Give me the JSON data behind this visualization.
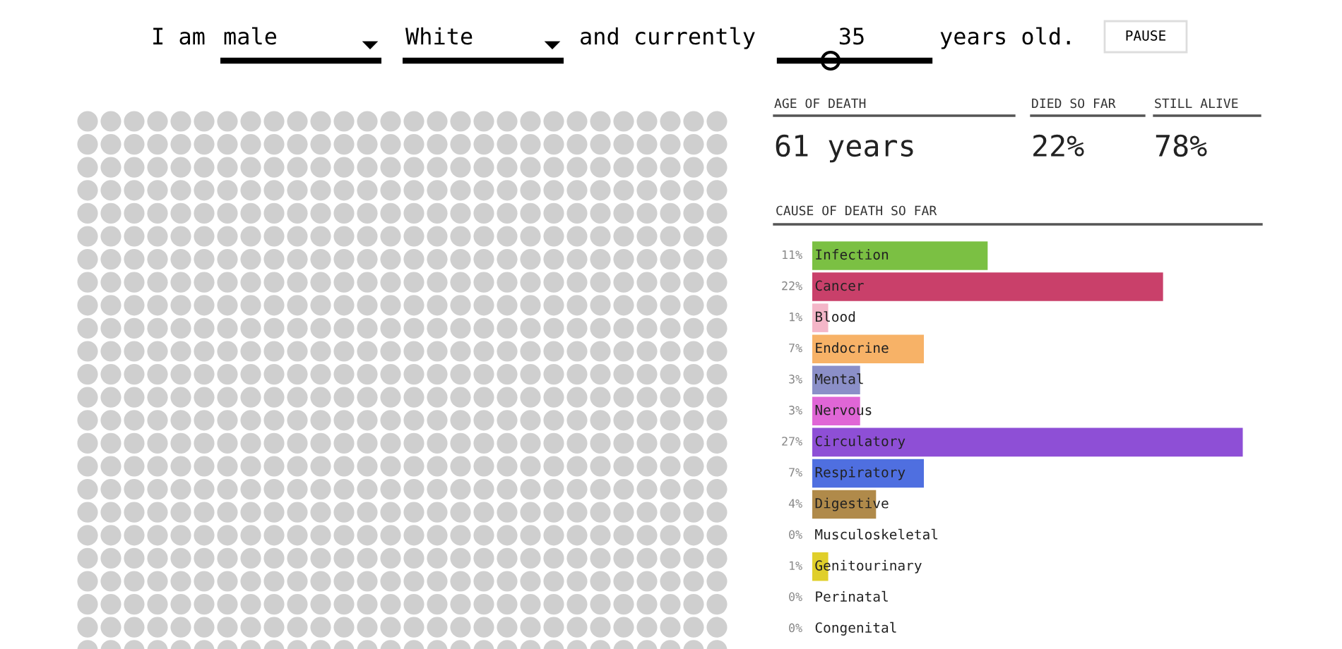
{
  "chart_data": [
    {
      "type": "other",
      "annotations": [
        "I am",
        "male",
        "White",
        "and currently",
        "35",
        "years old.",
        "PAUSE"
      ]
    },
    {
      "type": "other",
      "annotations": [
        "AGE OF DEATH",
        "61 years",
        "DIED SO FAR",
        "22%",
        "STILL ALIVE",
        "78%"
      ]
    },
    {
      "type": "bar",
      "orientation": "horizontal",
      "title": "CAUSE OF DEATH SO FAR",
      "categories": [
        "Infection",
        "Cancer",
        "Blood",
        "Endocrine",
        "Mental",
        "Nervous",
        "Circulatory",
        "Respiratory",
        "Digestive",
        "Musculoskeletal",
        "Genitourinary",
        "Perinatal",
        "Congenital"
      ],
      "values": [
        11,
        22,
        1,
        7,
        3,
        3,
        27,
        7,
        4,
        0,
        1,
        0,
        0
      ],
      "value_labels": [
        "11%",
        "22%",
        "1%",
        "7%",
        "3%",
        "3%",
        "27%",
        "7%",
        "4%",
        "0%",
        "1%",
        "0%",
        "0%"
      ],
      "colors": [
        "#7bc043",
        "#c9406a",
        "#f4b6c8",
        "#f7b267",
        "#8b8fc8",
        "#e066d6",
        "#8e4fd6",
        "#4f6fe0",
        "#b08a4a",
        "#999999",
        "#e0cf2a",
        "#999999",
        "#999999"
      ]
    }
  ]
}
